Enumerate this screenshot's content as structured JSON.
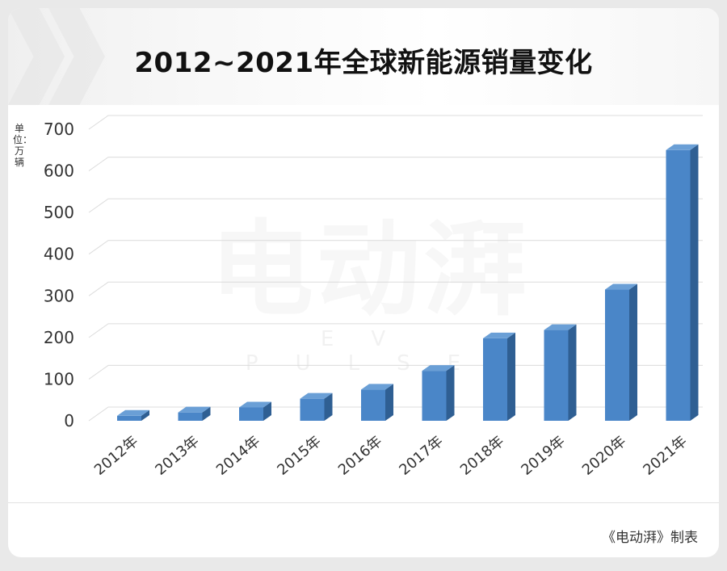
{
  "header": {
    "title": "2012~2021年全球新能源销量变化"
  },
  "footer": {
    "source": "《电动湃》制表"
  },
  "watermark": {
    "logo_text": "电动湃",
    "sub_text": "EV PULSE"
  },
  "colors": {
    "bar_front": "#4a86c8",
    "bar_side": "#2f5f93",
    "bar_top": "#6a9fd6",
    "grid": "#dcdcdc"
  },
  "chart_data": {
    "type": "bar",
    "title": "2012~2021年全球新能源销量变化",
    "ylabel": "单位：万辆",
    "xlabel": "",
    "categories": [
      "2012年",
      "2013年",
      "2014年",
      "2015年",
      "2016年",
      "2017年",
      "2018年",
      "2019年",
      "2020年",
      "2021年"
    ],
    "values": [
      12,
      20,
      32,
      53,
      75,
      120,
      198,
      218,
      315,
      650
    ],
    "ylim": [
      0,
      700
    ],
    "yticks": [
      0,
      100,
      200,
      300,
      400,
      500,
      600,
      700
    ],
    "grid": true,
    "legend": "none"
  }
}
